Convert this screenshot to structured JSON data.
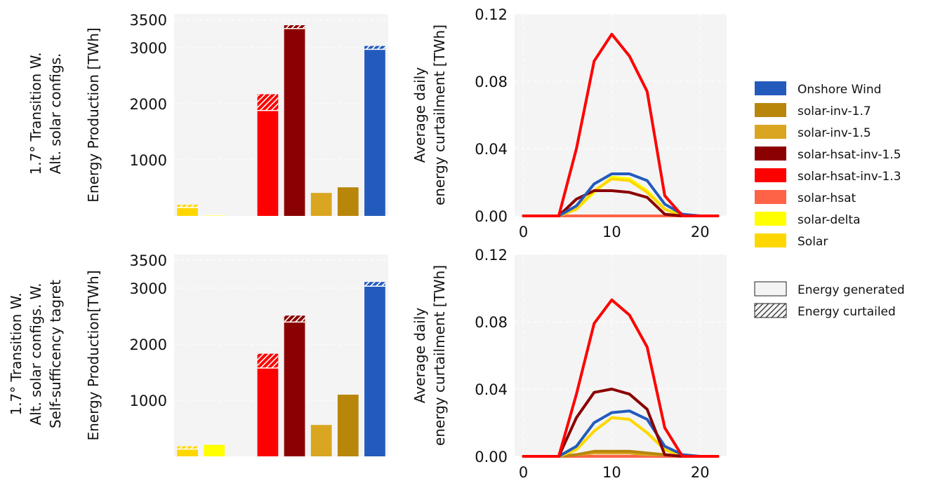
{
  "row_labels": [
    [
      "1.7° Transition W.",
      "Alt. solar configs."
    ],
    [
      "1.7° Transition W.",
      "Alt. solar configs. W.",
      "Self-sufficency tagret"
    ]
  ],
  "colors": {
    "Onshore Wind": "#235bbd",
    "solar-inv-1.7": "#b8860b",
    "solar-inv-1.5": "#daa520",
    "solar-hsat-inv-1.5": "#8b0000",
    "solar-hsat-inv-1.3": "#ff0000",
    "solar-hsat": "#ff6347",
    "solar-delta": "#ffff00",
    "Solar": "#ffd700"
  },
  "legend": {
    "items": [
      "Onshore Wind",
      "solar-inv-1.7",
      "solar-inv-1.5",
      "solar-hsat-inv-1.5",
      "solar-hsat-inv-1.3",
      "solar-hsat",
      "solar-delta",
      "Solar"
    ],
    "patterns": [
      "Energy generated",
      "Energy curtailed"
    ]
  },
  "chart_data": [
    {
      "type": "bar",
      "panel": "top-left",
      "ylabel": "Energy Production [TWh]",
      "yticks": [
        1000,
        2000,
        3000,
        3500
      ],
      "ylim": [
        0,
        3600
      ],
      "grid": true,
      "categories": [
        "Solar",
        "solar-delta",
        "solar-hsat",
        "solar-hsat-inv-1.3",
        "solar-hsat-inv-1.5",
        "solar-inv-1.5",
        "solar-inv-1.7",
        "Onshore Wind"
      ],
      "generated": [
        150,
        15,
        0,
        1880,
        3340,
        410,
        510,
        2970
      ],
      "curtailed": [
        50,
        5,
        0,
        290,
        60,
        0,
        0,
        60
      ]
    },
    {
      "type": "line",
      "panel": "top-right",
      "ylabel": [
        "Average daily",
        "energy curtailment [TWh]"
      ],
      "yticks": [
        0.0,
        0.04,
        0.08,
        0.12
      ],
      "xticks": [
        0,
        10,
        20
      ],
      "xlim": [
        -1,
        23
      ],
      "ylim": [
        0,
        0.12
      ],
      "grid": true,
      "x": [
        0,
        2,
        4,
        6,
        8,
        10,
        12,
        14,
        16,
        18,
        20,
        22
      ],
      "series": [
        {
          "name": "solar-inv-1.7",
          "values": [
            0,
            0,
            0,
            0,
            0,
            0,
            0,
            0,
            0,
            0,
            0,
            0
          ]
        },
        {
          "name": "solar-inv-1.5",
          "values": [
            0,
            0,
            0,
            0,
            0,
            0,
            0,
            0,
            0,
            0,
            0,
            0
          ]
        },
        {
          "name": "solar-hsat",
          "values": [
            0,
            0,
            0,
            0,
            0,
            0,
            0,
            0,
            0,
            0,
            0,
            0
          ]
        },
        {
          "name": "solar-delta",
          "values": [
            0,
            0,
            0,
            0.004,
            0.014,
            0.023,
            0.022,
            0.015,
            0.004,
            0,
            0,
            0
          ]
        },
        {
          "name": "Solar",
          "values": [
            0,
            0,
            0,
            0.004,
            0.015,
            0.022,
            0.021,
            0.014,
            0.004,
            0,
            0,
            0
          ]
        },
        {
          "name": "solar-hsat-inv-1.5",
          "values": [
            0,
            0,
            0,
            0.01,
            0.015,
            0.015,
            0.014,
            0.011,
            0.001,
            0,
            0,
            0
          ]
        },
        {
          "name": "Onshore Wind",
          "values": [
            0,
            0,
            0,
            0.006,
            0.019,
            0.025,
            0.025,
            0.021,
            0.007,
            0.001,
            0,
            0
          ]
        },
        {
          "name": "solar-hsat-inv-1.3",
          "values": [
            0,
            0,
            0,
            0.04,
            0.092,
            0.108,
            0.095,
            0.074,
            0.012,
            0,
            0,
            0
          ]
        }
      ]
    },
    {
      "type": "bar",
      "panel": "bottom-left",
      "ylabel": "Energy Production[TWh]",
      "yticks": [
        1000,
        2000,
        3000,
        3500
      ],
      "ylim": [
        0,
        3600
      ],
      "grid": true,
      "categories": [
        "Solar",
        "solar-delta",
        "solar-hsat",
        "solar-hsat-inv-1.3",
        "solar-hsat-inv-1.5",
        "solar-inv-1.5",
        "solar-inv-1.7",
        "Onshore Wind"
      ],
      "generated": [
        130,
        205,
        0,
        1575,
        2395,
        560,
        1100,
        3035
      ],
      "curtailed": [
        50,
        0,
        0,
        255,
        115,
        0,
        0,
        75
      ]
    },
    {
      "type": "line",
      "panel": "bottom-right",
      "ylabel": [
        "Average daily",
        "energy curtailment [TWh]"
      ],
      "yticks": [
        0.0,
        0.04,
        0.08,
        0.12
      ],
      "xticks": [
        0,
        10,
        20
      ],
      "xlim": [
        -1,
        23
      ],
      "ylim": [
        0,
        0.12
      ],
      "grid": true,
      "x": [
        0,
        2,
        4,
        6,
        8,
        10,
        12,
        14,
        16,
        18,
        20,
        22
      ],
      "series": [
        {
          "name": "solar-hsat",
          "values": [
            0,
            0,
            0,
            0,
            0,
            0,
            0,
            0,
            0,
            0,
            0,
            0
          ]
        },
        {
          "name": "solar-inv-1.5",
          "values": [
            0,
            0,
            0,
            0.001,
            0.002,
            0.002,
            0.002,
            0.001,
            0.001,
            0,
            0,
            0
          ]
        },
        {
          "name": "solar-inv-1.7",
          "values": [
            0,
            0,
            0,
            0.001,
            0.003,
            0.003,
            0.003,
            0.002,
            0.001,
            0,
            0,
            0
          ]
        },
        {
          "name": "solar-delta",
          "values": [
            0,
            0,
            0,
            0.004,
            0.015,
            0.023,
            0.022,
            0.014,
            0.004,
            0,
            0,
            0
          ]
        },
        {
          "name": "Solar",
          "values": [
            0,
            0,
            0,
            0.004,
            0.015,
            0.023,
            0.022,
            0.014,
            0.004,
            0,
            0,
            0
          ]
        },
        {
          "name": "Onshore Wind",
          "values": [
            0,
            0,
            0,
            0.006,
            0.02,
            0.026,
            0.027,
            0.022,
            0.006,
            0.001,
            0,
            0
          ]
        },
        {
          "name": "solar-hsat-inv-1.5",
          "values": [
            0,
            0,
            0,
            0.023,
            0.038,
            0.04,
            0.037,
            0.028,
            0.001,
            0,
            0,
            0
          ]
        },
        {
          "name": "solar-hsat-inv-1.3",
          "values": [
            0,
            0,
            0,
            0.037,
            0.079,
            0.093,
            0.084,
            0.065,
            0.017,
            0,
            0,
            0
          ]
        }
      ]
    }
  ]
}
